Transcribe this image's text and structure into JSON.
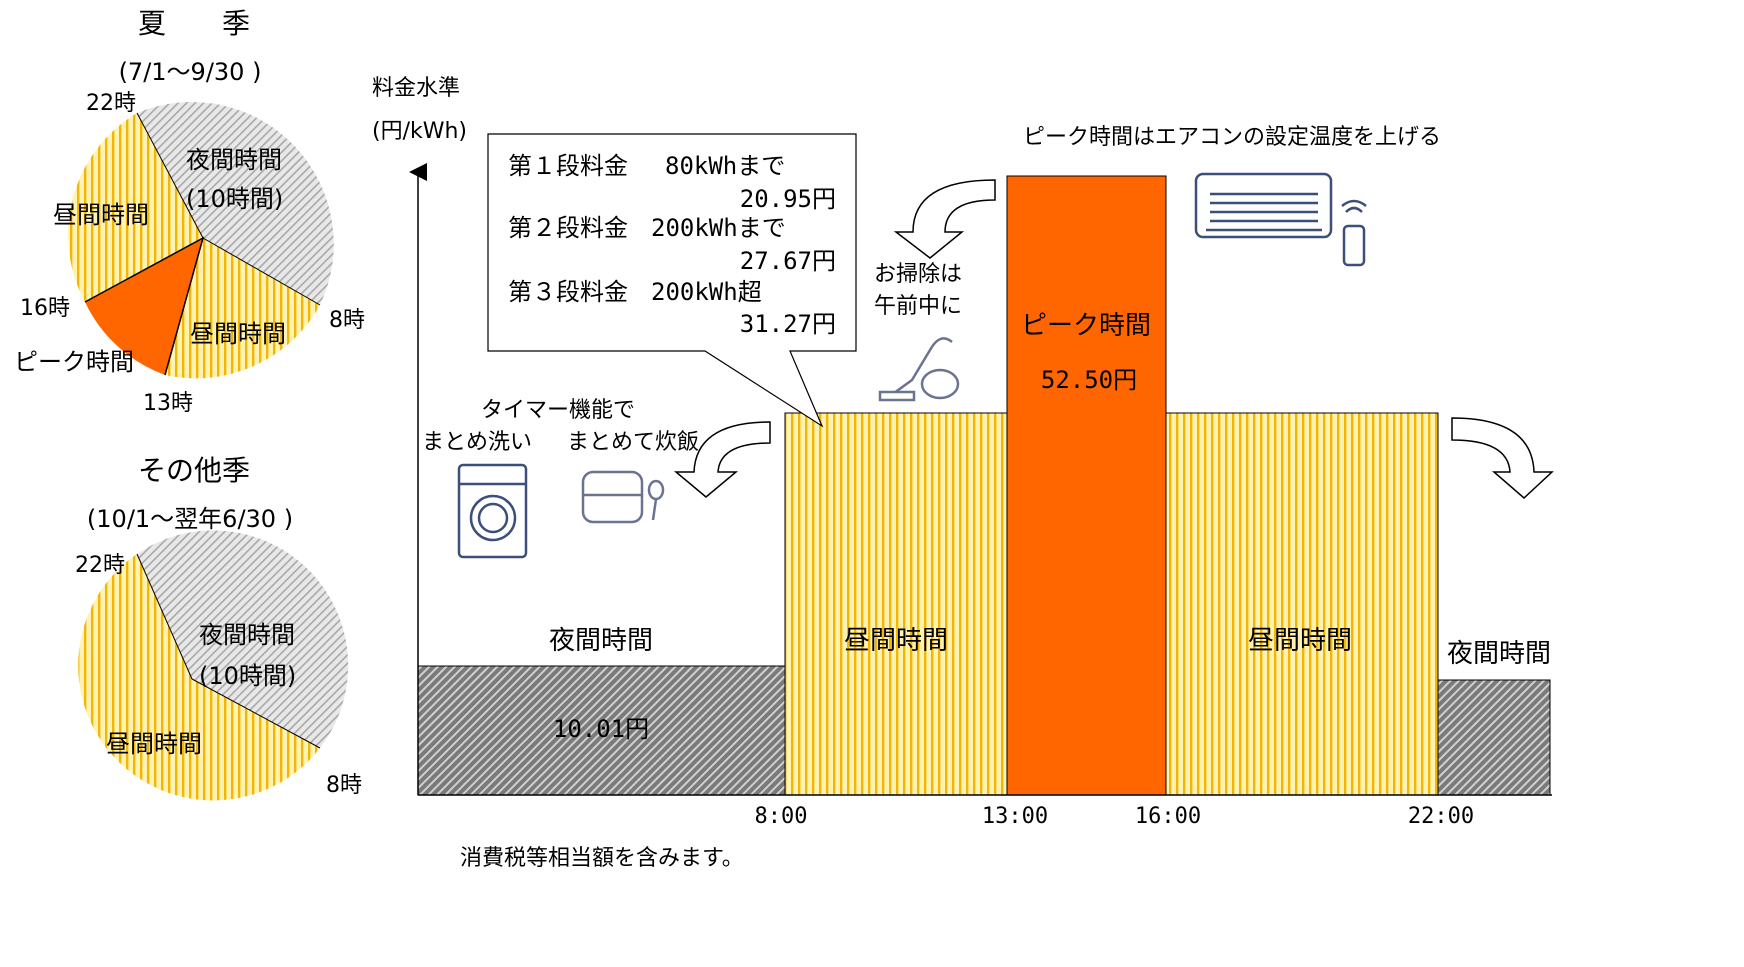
{
  "summer": {
    "title": "夏　　季",
    "period": "(7/1～9/30 )",
    "labels": {
      "h22": "22時",
      "h16": "16時",
      "h8": "8時",
      "h13": "13時",
      "night": "夜間時間",
      "night_hours": "(10時間)",
      "day1": "昼間時間",
      "day2": "昼間時間",
      "peak": "ピーク時間"
    }
  },
  "other": {
    "title": "その他季",
    "period": "(10/1～翌年6/30 )",
    "labels": {
      "h22": "22時",
      "h8": "8時",
      "night": "夜間時間",
      "night_hours": "(10時間)",
      "day": "昼間時間"
    }
  },
  "yaxis": {
    "label1": "料金水準",
    "label2": "(円/kWh)"
  },
  "callout": {
    "rows": [
      {
        "tier": "第１段料金",
        "limit": "80kWhまで",
        "price": "20.95円"
      },
      {
        "tier": "第２段料金",
        "limit": "200kWhまで",
        "price": "27.67円"
      },
      {
        "tier": "第３段料金",
        "limit": "200kWh超",
        "price": "31.27円"
      }
    ]
  },
  "bars": {
    "night_left": {
      "label": "夜間時間",
      "price": "10.01円"
    },
    "day_left": {
      "label": "昼間時間"
    },
    "peak": {
      "label": "ピーク時間",
      "price": "52.50円"
    },
    "day_right": {
      "label": "昼間時間"
    },
    "night_right": {
      "label": "夜間時間"
    }
  },
  "xticks": [
    "8:00",
    "13:00",
    "16:00",
    "22:00"
  ],
  "tips": {
    "aircon": "ピーク時間はエアコンの設定温度を上げる",
    "cleaning1": "お掃除は",
    "cleaning2": "午前中に",
    "timer": "タイマー機能で",
    "laundry": "まとめ洗い",
    "rice": "まとめて炊飯"
  },
  "footnote": "消費税等相当額を含みます。",
  "colors": {
    "peak": "#FF6600",
    "day_fill": "#FFF2B3",
    "day_stripe": "#F5B800",
    "night_fill": "#8C8C8C",
    "night_pie_fill": "#E6E6E6",
    "icon": "#3C4E7A"
  }
}
